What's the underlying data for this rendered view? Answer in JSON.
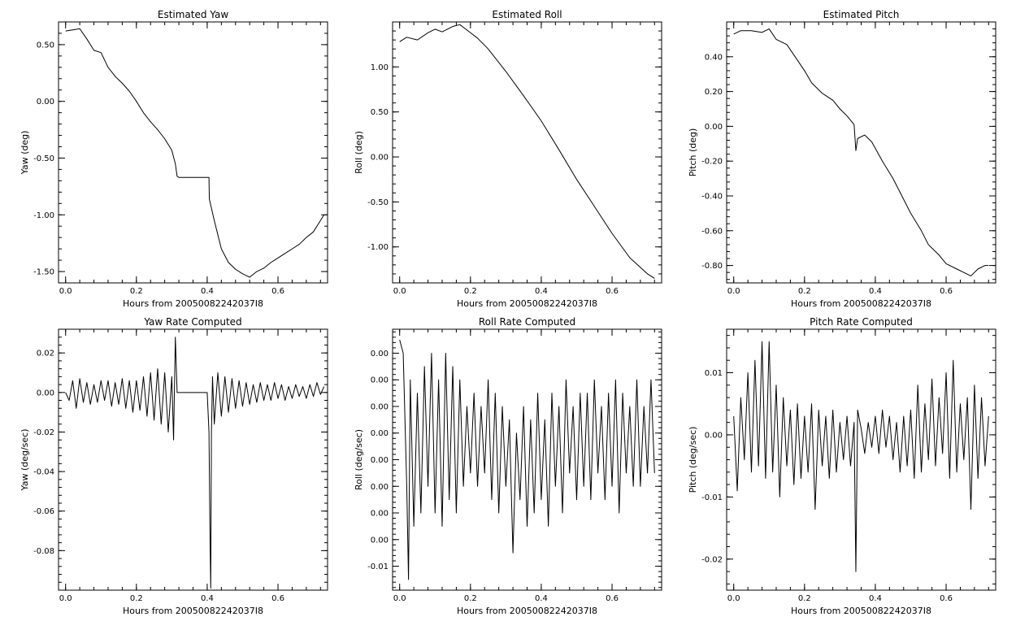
{
  "chart_data": [
    {
      "type": "line",
      "title": "Estimated Yaw",
      "xlabel": "Hours from 20050082242037I8",
      "ylabel": "Yaw (deg)",
      "xlim": [
        -0.02,
        0.74
      ],
      "ylim": [
        -1.6,
        0.7
      ],
      "xticks": [
        0.0,
        0.2,
        0.4,
        0.6
      ],
      "xtick_labels": [
        "0.0",
        "0.2",
        "0.4",
        "0.6"
      ],
      "yticks": [
        0.5,
        0.0,
        -0.5,
        -1.0,
        -1.5
      ],
      "ytick_labels": [
        "0.50",
        "0.00",
        "-0.50",
        "-1.00",
        "-1.50"
      ],
      "grid": false,
      "x": [
        0.0,
        0.02,
        0.04,
        0.06,
        0.08,
        0.1,
        0.12,
        0.14,
        0.16,
        0.18,
        0.2,
        0.22,
        0.24,
        0.26,
        0.28,
        0.3,
        0.31,
        0.315,
        0.32,
        0.35,
        0.38,
        0.405,
        0.406,
        0.42,
        0.44,
        0.46,
        0.48,
        0.5,
        0.52,
        0.54,
        0.56,
        0.58,
        0.6,
        0.62,
        0.64,
        0.66,
        0.68,
        0.7,
        0.72,
        0.73
      ],
      "y": [
        0.62,
        0.63,
        0.64,
        0.55,
        0.45,
        0.43,
        0.3,
        0.22,
        0.16,
        0.09,
        0.0,
        -0.1,
        -0.18,
        -0.25,
        -0.33,
        -0.43,
        -0.55,
        -0.66,
        -0.67,
        -0.67,
        -0.67,
        -0.67,
        -0.86,
        -1.05,
        -1.3,
        -1.42,
        -1.48,
        -1.52,
        -1.55,
        -1.5,
        -1.47,
        -1.42,
        -1.38,
        -1.34,
        -1.3,
        -1.26,
        -1.2,
        -1.15,
        -1.05,
        -1.0
      ]
    },
    {
      "type": "line",
      "title": "Estimated Roll",
      "xlabel": "Hours from 20050082242037I8",
      "ylabel": "Roll (deg)",
      "xlim": [
        -0.02,
        0.74
      ],
      "ylim": [
        -1.4,
        1.5
      ],
      "xticks": [
        0.0,
        0.2,
        0.4,
        0.6
      ],
      "xtick_labels": [
        "0.0",
        "0.2",
        "0.4",
        "0.6"
      ],
      "yticks": [
        1.0,
        0.5,
        0.0,
        -0.5,
        -1.0
      ],
      "ytick_labels": [
        "1.00",
        "0.50",
        "0.00",
        "-0.50",
        "-1.00"
      ],
      "grid": false,
      "x": [
        0.0,
        0.02,
        0.05,
        0.08,
        0.1,
        0.12,
        0.15,
        0.17,
        0.18,
        0.2,
        0.22,
        0.25,
        0.3,
        0.35,
        0.4,
        0.45,
        0.5,
        0.55,
        0.6,
        0.65,
        0.7,
        0.72
      ],
      "y": [
        1.28,
        1.33,
        1.3,
        1.38,
        1.42,
        1.39,
        1.45,
        1.47,
        1.44,
        1.38,
        1.32,
        1.2,
        0.95,
        0.68,
        0.4,
        0.08,
        -0.25,
        -0.55,
        -0.85,
        -1.12,
        -1.3,
        -1.35
      ]
    },
    {
      "type": "line",
      "title": "Estimated Pitch",
      "xlabel": "Hours from 20050082242037I8",
      "ylabel": "Pitch (deg)",
      "xlim": [
        -0.02,
        0.74
      ],
      "ylim": [
        -0.9,
        0.6
      ],
      "xticks": [
        0.0,
        0.2,
        0.4,
        0.6
      ],
      "xtick_labels": [
        "0.0",
        "0.2",
        "0.4",
        "0.6"
      ],
      "yticks": [
        0.4,
        0.2,
        0.0,
        -0.2,
        -0.4,
        -0.6,
        -0.8
      ],
      "ytick_labels": [
        "0.40",
        "0.20",
        "0.00",
        "-0.20",
        "-0.40",
        "-0.60",
        "-0.80"
      ],
      "grid": false,
      "x": [
        0.0,
        0.02,
        0.05,
        0.08,
        0.1,
        0.12,
        0.15,
        0.18,
        0.2,
        0.22,
        0.25,
        0.28,
        0.3,
        0.32,
        0.34,
        0.345,
        0.35,
        0.37,
        0.39,
        0.42,
        0.45,
        0.48,
        0.5,
        0.53,
        0.55,
        0.58,
        0.6,
        0.63,
        0.65,
        0.67,
        0.69,
        0.71,
        0.72
      ],
      "y": [
        0.53,
        0.55,
        0.55,
        0.54,
        0.56,
        0.5,
        0.47,
        0.38,
        0.32,
        0.25,
        0.19,
        0.15,
        0.1,
        0.06,
        0.01,
        -0.14,
        -0.07,
        -0.05,
        -0.09,
        -0.2,
        -0.3,
        -0.42,
        -0.5,
        -0.6,
        -0.68,
        -0.74,
        -0.79,
        -0.82,
        -0.84,
        -0.86,
        -0.82,
        -0.8,
        -0.8
      ]
    },
    {
      "type": "line",
      "title": "Yaw Rate Computed",
      "xlabel": "Hours from 20050082242037I8",
      "ylabel": "Yaw (deg/sec)",
      "xlim": [
        -0.02,
        0.74
      ],
      "ylim": [
        -0.1,
        0.032
      ],
      "xticks": [
        0.0,
        0.2,
        0.4,
        0.6
      ],
      "xtick_labels": [
        "0.0",
        "0.2",
        "0.4",
        "0.6"
      ],
      "yticks": [
        0.02,
        0.0,
        -0.02,
        -0.04,
        -0.06,
        -0.08
      ],
      "ytick_labels": [
        "0.02",
        "0.00",
        "-0.02",
        "-0.04",
        "-0.06",
        "-0.08"
      ],
      "grid": false,
      "x": [
        0.0,
        0.01,
        0.02,
        0.03,
        0.04,
        0.05,
        0.06,
        0.07,
        0.08,
        0.09,
        0.1,
        0.11,
        0.12,
        0.13,
        0.14,
        0.15,
        0.16,
        0.17,
        0.18,
        0.19,
        0.2,
        0.21,
        0.22,
        0.23,
        0.24,
        0.25,
        0.26,
        0.27,
        0.28,
        0.29,
        0.3,
        0.305,
        0.31,
        0.315,
        0.32,
        0.35,
        0.38,
        0.4,
        0.405,
        0.408,
        0.41,
        0.412,
        0.415,
        0.42,
        0.43,
        0.44,
        0.45,
        0.46,
        0.47,
        0.48,
        0.49,
        0.5,
        0.51,
        0.52,
        0.53,
        0.54,
        0.55,
        0.56,
        0.57,
        0.58,
        0.59,
        0.6,
        0.61,
        0.62,
        0.63,
        0.64,
        0.65,
        0.66,
        0.67,
        0.68,
        0.69,
        0.7,
        0.71,
        0.72,
        0.73
      ],
      "y": [
        0.0,
        -0.004,
        0.006,
        -0.008,
        0.007,
        -0.005,
        0.005,
        -0.006,
        0.004,
        -0.005,
        0.006,
        -0.004,
        0.006,
        -0.007,
        0.005,
        -0.006,
        0.007,
        -0.008,
        0.006,
        -0.01,
        0.006,
        -0.009,
        0.008,
        -0.012,
        0.01,
        -0.014,
        0.012,
        -0.016,
        0.01,
        -0.02,
        0.008,
        -0.024,
        0.028,
        0.0,
        0.0,
        0.0,
        0.0,
        0.0,
        -0.02,
        -0.075,
        -0.099,
        -0.02,
        0.008,
        -0.016,
        0.01,
        -0.012,
        0.008,
        -0.01,
        0.007,
        -0.008,
        0.006,
        -0.007,
        0.005,
        -0.006,
        0.004,
        -0.005,
        0.005,
        -0.004,
        0.004,
        -0.004,
        0.005,
        -0.003,
        0.004,
        -0.004,
        0.003,
        -0.003,
        0.004,
        -0.002,
        0.003,
        -0.003,
        0.004,
        -0.002,
        0.005,
        -0.001,
        0.003
      ]
    },
    {
      "type": "line",
      "title": "Roll Rate Computed",
      "xlabel": "Hours from 20050082242037I8",
      "ylabel": "Roll (deg/sec)",
      "xlim": [
        -0.02,
        0.74
      ],
      "ylim": [
        -0.0118,
        0.0078
      ],
      "xticks": [
        0.0,
        0.2,
        0.4,
        0.6
      ],
      "xtick_labels": [
        "0.0",
        "0.2",
        "0.4",
        "0.6"
      ],
      "yticks": [
        0.006,
        0.004,
        0.002,
        0.0,
        -0.002,
        -0.004,
        -0.006,
        -0.008,
        -0.01
      ],
      "ytick_labels": [
        "0.00",
        "0.00",
        "0.00",
        "0.00",
        "0.00",
        "0.00",
        "0.00",
        "0.00",
        "-0.01"
      ],
      "grid": false,
      "x": [
        0.0,
        0.01,
        0.02,
        0.025,
        0.03,
        0.04,
        0.05,
        0.06,
        0.07,
        0.08,
        0.09,
        0.1,
        0.11,
        0.12,
        0.13,
        0.14,
        0.15,
        0.16,
        0.17,
        0.18,
        0.19,
        0.2,
        0.21,
        0.22,
        0.23,
        0.24,
        0.25,
        0.26,
        0.27,
        0.28,
        0.29,
        0.3,
        0.31,
        0.32,
        0.33,
        0.34,
        0.35,
        0.36,
        0.37,
        0.38,
        0.39,
        0.4,
        0.41,
        0.42,
        0.43,
        0.44,
        0.45,
        0.46,
        0.47,
        0.48,
        0.49,
        0.5,
        0.51,
        0.52,
        0.53,
        0.54,
        0.55,
        0.56,
        0.57,
        0.58,
        0.59,
        0.6,
        0.61,
        0.62,
        0.63,
        0.64,
        0.65,
        0.66,
        0.67,
        0.68,
        0.69,
        0.7,
        0.71,
        0.72
      ],
      "y": [
        0.007,
        0.006,
        -0.004,
        -0.011,
        0.004,
        -0.007,
        0.003,
        -0.006,
        0.005,
        -0.004,
        0.006,
        -0.006,
        0.004,
        -0.007,
        0.006,
        -0.005,
        0.005,
        -0.006,
        0.004,
        -0.004,
        0.002,
        -0.003,
        0.003,
        -0.004,
        0.002,
        -0.003,
        0.004,
        -0.005,
        0.003,
        -0.006,
        0.002,
        -0.004,
        0.001,
        -0.009,
        0.0,
        -0.005,
        0.002,
        -0.007,
        0.001,
        -0.006,
        0.003,
        -0.005,
        0.001,
        -0.007,
        0.003,
        -0.004,
        0.002,
        -0.006,
        0.004,
        -0.003,
        0.002,
        -0.005,
        0.003,
        -0.004,
        0.003,
        -0.005,
        0.004,
        -0.003,
        0.002,
        -0.005,
        0.003,
        -0.004,
        0.004,
        -0.006,
        0.003,
        -0.003,
        0.002,
        -0.004,
        0.004,
        -0.004,
        0.002,
        -0.003,
        0.004,
        -0.003
      ]
    },
    {
      "type": "line",
      "title": "Pitch Rate Computed",
      "xlabel": "Hours from 20050082242037I8",
      "ylabel": "Pitch (deg/sec)",
      "xlim": [
        -0.02,
        0.74
      ],
      "ylim": [
        -0.025,
        0.017
      ],
      "xticks": [
        0.0,
        0.2,
        0.4,
        0.6
      ],
      "xtick_labels": [
        "0.0",
        "0.2",
        "0.4",
        "0.6"
      ],
      "yticks": [
        0.01,
        0.0,
        -0.01,
        -0.02
      ],
      "ytick_labels": [
        "0.01",
        "0.00",
        "-0.01",
        "-0.02"
      ],
      "grid": false,
      "x": [
        0.0,
        0.01,
        0.02,
        0.03,
        0.04,
        0.05,
        0.06,
        0.07,
        0.08,
        0.09,
        0.1,
        0.11,
        0.12,
        0.13,
        0.14,
        0.15,
        0.16,
        0.17,
        0.18,
        0.19,
        0.2,
        0.21,
        0.22,
        0.23,
        0.24,
        0.25,
        0.26,
        0.27,
        0.28,
        0.29,
        0.3,
        0.31,
        0.32,
        0.33,
        0.34,
        0.345,
        0.35,
        0.36,
        0.37,
        0.38,
        0.39,
        0.4,
        0.41,
        0.42,
        0.43,
        0.44,
        0.45,
        0.46,
        0.47,
        0.48,
        0.49,
        0.5,
        0.51,
        0.52,
        0.53,
        0.54,
        0.55,
        0.56,
        0.57,
        0.58,
        0.59,
        0.6,
        0.61,
        0.62,
        0.63,
        0.64,
        0.65,
        0.66,
        0.67,
        0.68,
        0.69,
        0.7,
        0.71,
        0.72
      ],
      "y": [
        0.003,
        -0.009,
        0.006,
        -0.004,
        0.01,
        -0.006,
        0.012,
        -0.005,
        0.015,
        -0.007,
        0.015,
        -0.006,
        0.008,
        -0.01,
        0.006,
        -0.005,
        0.004,
        -0.008,
        0.005,
        -0.007,
        0.003,
        -0.006,
        0.005,
        -0.012,
        0.004,
        -0.005,
        0.003,
        -0.007,
        0.004,
        -0.006,
        0.002,
        -0.004,
        0.003,
        -0.005,
        0.002,
        -0.022,
        0.004,
        0.001,
        -0.003,
        0.002,
        -0.002,
        0.003,
        -0.003,
        0.004,
        -0.002,
        0.003,
        -0.004,
        0.002,
        -0.006,
        0.003,
        -0.005,
        0.004,
        -0.007,
        0.008,
        -0.006,
        0.005,
        -0.004,
        0.009,
        -0.005,
        0.006,
        -0.003,
        0.01,
        -0.007,
        0.012,
        -0.006,
        0.005,
        -0.004,
        0.006,
        -0.012,
        0.008,
        -0.007,
        0.006,
        -0.005,
        0.003
      ]
    }
  ]
}
